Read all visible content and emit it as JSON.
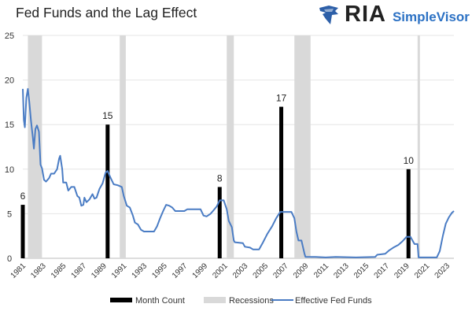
{
  "header": {
    "title": "Fed Funds and the Lag Effect",
    "logo_text": "RIA",
    "logo_subtext": "SimpleVisor"
  },
  "colors": {
    "line": "#4a7cc4",
    "bar": "#000000",
    "recession": "#d9d9d9",
    "grid": "#e6e6e6"
  },
  "chart_data": {
    "type": "bar+line",
    "title": "Fed Funds and the Lag Effect",
    "ylim": [
      0,
      25
    ],
    "yticks": [
      "0",
      "5",
      "10",
      "15",
      "20",
      "25"
    ],
    "xlim": [
      1981,
      2023.7
    ],
    "xticks": [
      "1981",
      "1983",
      "1985",
      "1987",
      "1989",
      "1991",
      "1993",
      "1995",
      "1997",
      "1999",
      "2001",
      "2003",
      "2005",
      "2007",
      "2009",
      "2011",
      "2013",
      "2015",
      "2017",
      "2019",
      "2021",
      "2023"
    ],
    "legend": [
      "Month Count",
      "Recessions",
      "Effective Fed Funds"
    ],
    "legend_position": "bottom",
    "month_count": [
      {
        "x": 1981.0,
        "value": 6,
        "label": "6"
      },
      {
        "x": 1989.4,
        "value": 15,
        "label": "15"
      },
      {
        "x": 2000.5,
        "value": 8,
        "label": "8"
      },
      {
        "x": 2006.6,
        "value": 17,
        "label": "17"
      },
      {
        "x": 2019.2,
        "value": 10,
        "label": "10"
      }
    ],
    "recessions": [
      [
        1981.5,
        1982.9
      ],
      [
        1990.6,
        1991.2
      ],
      [
        2001.2,
        2001.9
      ],
      [
        2007.9,
        2009.5
      ],
      [
        2020.1,
        2020.3
      ]
    ],
    "fed_funds": [
      [
        1981.0,
        19
      ],
      [
        1981.1,
        15.5
      ],
      [
        1981.2,
        14.7
      ],
      [
        1981.35,
        18
      ],
      [
        1981.5,
        19
      ],
      [
        1981.65,
        17.5
      ],
      [
        1981.8,
        15.5
      ],
      [
        1982.0,
        13.5
      ],
      [
        1982.1,
        12.3
      ],
      [
        1982.25,
        14.5
      ],
      [
        1982.4,
        14.9
      ],
      [
        1982.6,
        14.2
      ],
      [
        1982.75,
        10.5
      ],
      [
        1982.9,
        10.1
      ],
      [
        1983.1,
        8.8
      ],
      [
        1983.3,
        8.6
      ],
      [
        1983.6,
        9.0
      ],
      [
        1983.8,
        9.5
      ],
      [
        1984.1,
        9.5
      ],
      [
        1984.4,
        10.0
      ],
      [
        1984.6,
        11.2
      ],
      [
        1984.7,
        11.5
      ],
      [
        1984.9,
        10.0
      ],
      [
        1985.0,
        8.5
      ],
      [
        1985.3,
        8.5
      ],
      [
        1985.5,
        7.6
      ],
      [
        1985.8,
        8.0
      ],
      [
        1986.1,
        8.0
      ],
      [
        1986.4,
        7.0
      ],
      [
        1986.6,
        6.8
      ],
      [
        1986.8,
        5.9
      ],
      [
        1987.0,
        6.0
      ],
      [
        1987.1,
        6.8
      ],
      [
        1987.3,
        6.3
      ],
      [
        1987.6,
        6.6
      ],
      [
        1987.9,
        7.2
      ],
      [
        1988.1,
        6.7
      ],
      [
        1988.3,
        6.8
      ],
      [
        1988.6,
        7.8
      ],
      [
        1988.9,
        8.4
      ],
      [
        1989.2,
        9.6
      ],
      [
        1989.4,
        9.8
      ],
      [
        1989.7,
        9.0
      ],
      [
        1990.0,
        8.3
      ],
      [
        1990.4,
        8.2
      ],
      [
        1990.8,
        8.0
      ],
      [
        1991.0,
        7.0
      ],
      [
        1991.3,
        5.9
      ],
      [
        1991.6,
        5.7
      ],
      [
        1991.9,
        4.8
      ],
      [
        1992.1,
        4.0
      ],
      [
        1992.4,
        3.8
      ],
      [
        1992.7,
        3.2
      ],
      [
        1993.0,
        3.0
      ],
      [
        1993.5,
        3.0
      ],
      [
        1994.0,
        3.0
      ],
      [
        1994.3,
        3.6
      ],
      [
        1994.6,
        4.5
      ],
      [
        1994.9,
        5.3
      ],
      [
        1995.2,
        6.0
      ],
      [
        1995.5,
        5.9
      ],
      [
        1995.8,
        5.7
      ],
      [
        1996.1,
        5.3
      ],
      [
        1996.6,
        5.3
      ],
      [
        1997.0,
        5.3
      ],
      [
        1997.3,
        5.5
      ],
      [
        1998.0,
        5.5
      ],
      [
        1998.6,
        5.5
      ],
      [
        1998.9,
        4.8
      ],
      [
        1999.2,
        4.7
      ],
      [
        1999.6,
        5.0
      ],
      [
        1999.9,
        5.4
      ],
      [
        2000.2,
        5.8
      ],
      [
        2000.5,
        6.5
      ],
      [
        2000.9,
        6.5
      ],
      [
        2001.2,
        5.5
      ],
      [
        2001.4,
        4.2
      ],
      [
        2001.7,
        3.5
      ],
      [
        2001.9,
        2.0
      ],
      [
        2002.0,
        1.8
      ],
      [
        2002.8,
        1.7
      ],
      [
        2003.0,
        1.3
      ],
      [
        2003.5,
        1.2
      ],
      [
        2003.8,
        1.0
      ],
      [
        2004.4,
        1.0
      ],
      [
        2004.8,
        1.8
      ],
      [
        2005.2,
        2.7
      ],
      [
        2005.7,
        3.6
      ],
      [
        2006.1,
        4.5
      ],
      [
        2006.5,
        5.2
      ],
      [
        2007.6,
        5.2
      ],
      [
        2007.9,
        4.5
      ],
      [
        2008.1,
        3.0
      ],
      [
        2008.3,
        2.0
      ],
      [
        2008.6,
        2.0
      ],
      [
        2008.9,
        0.5
      ],
      [
        2009.0,
        0.16
      ],
      [
        2010.0,
        0.15
      ],
      [
        2011.0,
        0.1
      ],
      [
        2012.0,
        0.15
      ],
      [
        2014.0,
        0.1
      ],
      [
        2015.9,
        0.15
      ],
      [
        2016.1,
        0.4
      ],
      [
        2016.9,
        0.5
      ],
      [
        2017.3,
        0.9
      ],
      [
        2017.7,
        1.2
      ],
      [
        2018.2,
        1.5
      ],
      [
        2018.6,
        1.9
      ],
      [
        2019.0,
        2.4
      ],
      [
        2019.4,
        2.4
      ],
      [
        2019.8,
        1.6
      ],
      [
        2020.1,
        1.6
      ],
      [
        2020.2,
        0.1
      ],
      [
        2022.0,
        0.1
      ],
      [
        2022.3,
        0.8
      ],
      [
        2022.6,
        2.5
      ],
      [
        2022.9,
        3.9
      ],
      [
        2023.2,
        4.6
      ],
      [
        2023.5,
        5.1
      ],
      [
        2023.7,
        5.3
      ]
    ]
  }
}
